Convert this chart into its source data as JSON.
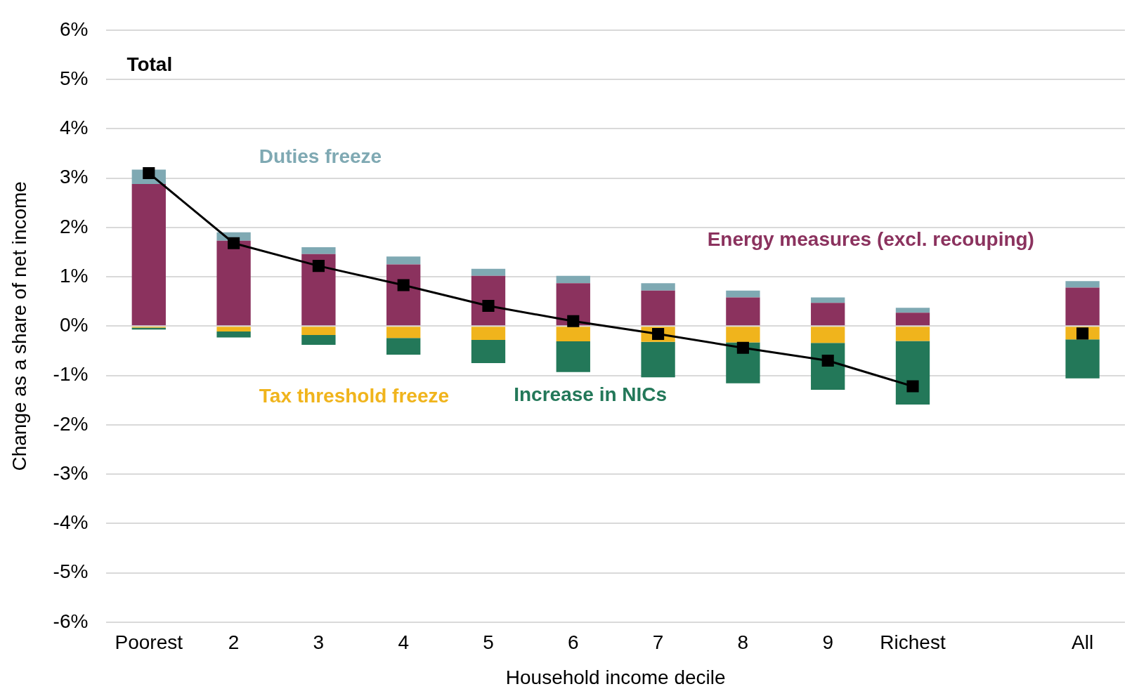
{
  "chart_data": {
    "type": "bar",
    "stacked": true,
    "xlabel": "Household income decile",
    "ylabel": "Change as a share of net income",
    "categories": [
      "Poorest",
      "2",
      "3",
      "4",
      "5",
      "6",
      "7",
      "8",
      "9",
      "Richest",
      null,
      "All"
    ],
    "series": [
      {
        "name": "Energy measures (excl. recouping)",
        "color": "#8b325e",
        "values": [
          2.88,
          1.73,
          1.46,
          1.25,
          1.02,
          0.87,
          0.72,
          0.58,
          0.47,
          0.27,
          null,
          0.78
        ]
      },
      {
        "name": "Duties freeze",
        "color": "#7fa9b3",
        "values": [
          0.29,
          0.17,
          0.14,
          0.16,
          0.14,
          0.15,
          0.15,
          0.14,
          0.11,
          0.1,
          null,
          0.13
        ]
      },
      {
        "name": "Tax threshold freeze",
        "color": "#f0b41c",
        "values": [
          -0.03,
          -0.11,
          -0.18,
          -0.24,
          -0.28,
          -0.31,
          -0.32,
          -0.33,
          -0.34,
          -0.3,
          null,
          -0.27
        ]
      },
      {
        "name": "Increase in NICs",
        "color": "#237859",
        "values": [
          -0.04,
          -0.12,
          -0.2,
          -0.34,
          -0.47,
          -0.62,
          -0.72,
          -0.83,
          -0.95,
          -1.29,
          null,
          -0.79
        ]
      },
      {
        "name": "Total",
        "type": "line",
        "color": "#000000",
        "marker": "square",
        "values": [
          3.1,
          1.68,
          1.22,
          0.83,
          0.41,
          0.1,
          -0.16,
          -0.44,
          -0.7,
          -1.22,
          null,
          -0.15
        ]
      }
    ],
    "ylim": [
      -6,
      6
    ],
    "yticks": [
      {
        "value": -6,
        "label": "-6%"
      },
      {
        "value": -5,
        "label": "-5%"
      },
      {
        "value": -4,
        "label": "-4%"
      },
      {
        "value": -3,
        "label": "-3%"
      },
      {
        "value": -2,
        "label": "-2%"
      },
      {
        "value": -1,
        "label": "-1%"
      },
      {
        "value": 0,
        "label": "0%"
      },
      {
        "value": 1,
        "label": "1%"
      },
      {
        "value": 2,
        "label": "2%"
      },
      {
        "value": 3,
        "label": "3%"
      },
      {
        "value": 4,
        "label": "4%"
      },
      {
        "value": 5,
        "label": "5%"
      },
      {
        "value": 6,
        "label": "6%"
      }
    ],
    "grid": "y",
    "legend": false
  }
}
